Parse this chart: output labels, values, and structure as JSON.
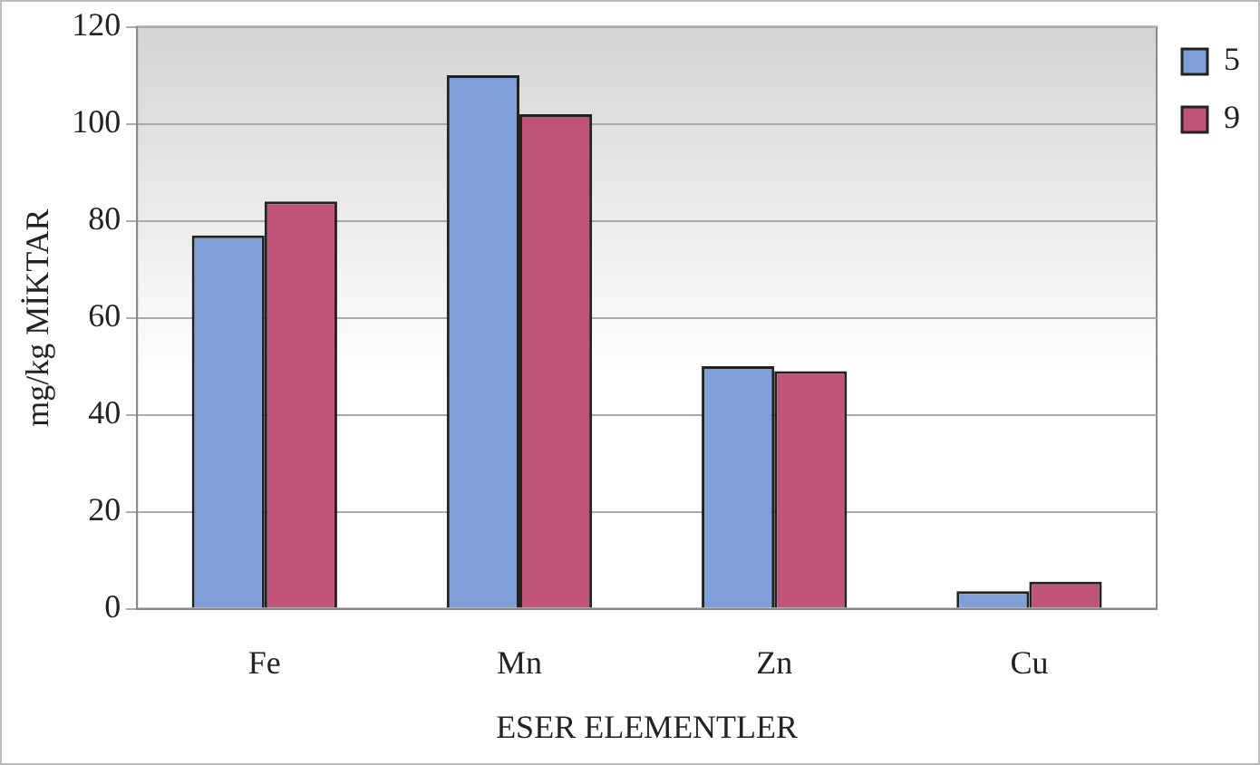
{
  "chart_data": {
    "type": "bar",
    "xlabel": "ESER ELEMENTLER",
    "ylabel": "mg/kg MİKTAR",
    "categories": [
      "Fe",
      "Mn",
      "Zn",
      "Cu"
    ],
    "series": [
      {
        "name": "5",
        "color": "#7f9fd8",
        "values": [
          77,
          110,
          50,
          3.6
        ]
      },
      {
        "name": "9",
        "color": "#c05478",
        "values": [
          84,
          102,
          49,
          5.6
        ]
      }
    ],
    "ylim": [
      0,
      120
    ],
    "yticks": [
      0,
      20,
      40,
      60,
      80,
      100,
      120
    ],
    "grid": "y",
    "legend": "top right"
  }
}
